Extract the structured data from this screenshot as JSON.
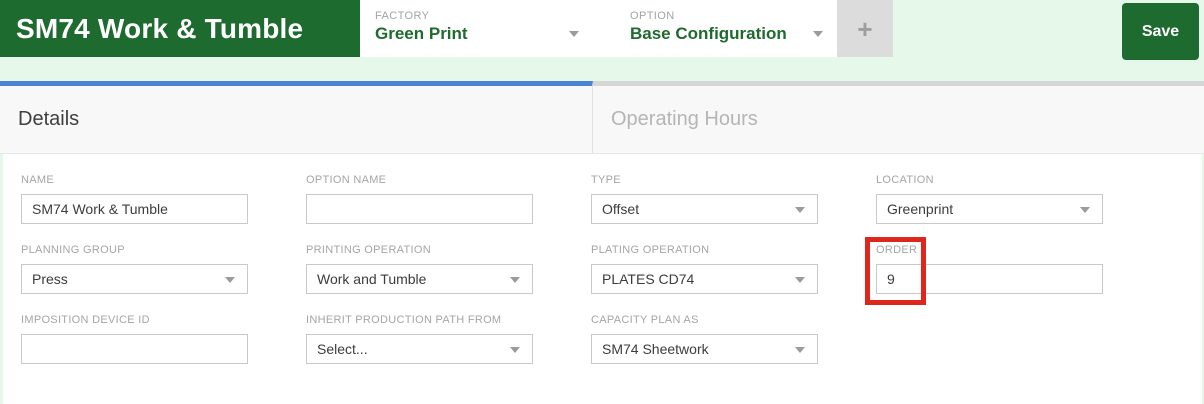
{
  "header": {
    "title": "SM74 Work & Tumble",
    "factory": {
      "label": "FACTORY",
      "value": "Green Print"
    },
    "option": {
      "label": "OPTION",
      "value": "Base Configuration"
    },
    "add_button_label": "+",
    "save_button_label": "Save"
  },
  "tabs": [
    {
      "label": "Details",
      "active": true
    },
    {
      "label": "Operating Hours",
      "active": false
    }
  ],
  "form": {
    "fields": [
      {
        "label": "NAME",
        "value": "SM74 Work & Tumble",
        "type": "text"
      },
      {
        "label": "OPTION NAME",
        "value": "",
        "type": "text"
      },
      {
        "label": "TYPE",
        "value": "Offset",
        "type": "select"
      },
      {
        "label": "LOCATION",
        "value": "Greenprint",
        "type": "select"
      },
      {
        "label": "PLANNING GROUP",
        "value": "Press",
        "type": "select"
      },
      {
        "label": "PRINTING OPERATION",
        "value": "Work and Tumble",
        "type": "select"
      },
      {
        "label": "PLATING OPERATION",
        "value": "PLATES CD74",
        "type": "select"
      },
      {
        "label": "ORDER",
        "value": "9",
        "type": "text",
        "highlighted": true
      },
      {
        "label": "IMPOSITION DEVICE ID",
        "value": "",
        "type": "text"
      },
      {
        "label": "INHERIT PRODUCTION PATH FROM",
        "value": "Select...",
        "type": "select"
      },
      {
        "label": "CAPACITY PLAN AS",
        "value": "SM74 Sheetwork",
        "type": "select"
      }
    ]
  },
  "colors": {
    "brand_green": "#1e6b2f",
    "light_green_bg": "#e6f8ea",
    "active_tab_blue": "#4a83d6",
    "annotation_red": "#dd261c"
  }
}
